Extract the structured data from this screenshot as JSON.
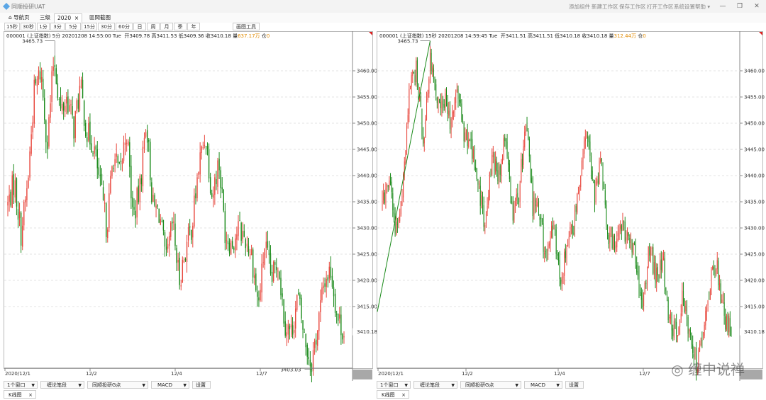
{
  "app": {
    "title": "同顺投研UAT"
  },
  "menu": {
    "add_component": "添加组件",
    "new_workspace": "新建工作区",
    "save_workspace": "保存工作区",
    "open_workspace": "打开工作区",
    "settings": "系统设置",
    "help": "帮助"
  },
  "tabs": [
    {
      "label": "导航页",
      "icon": "home-icon"
    },
    {
      "label": "三级"
    },
    {
      "label": "2020",
      "close": "×"
    },
    {
      "label": "區間截图"
    }
  ],
  "periods": [
    "15秒",
    "30秒",
    "1分",
    "3分",
    "5分",
    "15分",
    "30分",
    "60分",
    "日",
    "周",
    "月",
    "季",
    "年"
  ],
  "draw_tools": "画图工具",
  "left_panel": {
    "info": {
      "code": "000001",
      "name": "(上证指数)",
      "period": "5分",
      "datetime": "20201208 14:55:00 Tue",
      "open_label": "开",
      "open": "3409.78",
      "high_label": "高",
      "high": "3411.53",
      "low_label": "低",
      "low": "3409.36",
      "close_label": "收",
      "close": "3410.18",
      "vol_label": "量",
      "vol": "637.17万",
      "pos_label": "仓",
      "pos": "0"
    },
    "max_label": "3465.73",
    "min_label": "3403.03",
    "price_tag": "3410.18",
    "y_ticks": [
      "3460.00",
      "3455.00",
      "3450.00",
      "3445.00",
      "3440.00",
      "3435.00",
      "3430.00",
      "3425.00",
      "3420.00",
      "3415.00"
    ],
    "x_labels": [
      "2020/12/1",
      "12/2",
      "12/4",
      "12/7"
    ]
  },
  "right_panel": {
    "info": {
      "code": "000001",
      "name": "(上证指数)",
      "period": "15秒",
      "datetime": "20201208 14:59:45 Tue",
      "open_label": "开",
      "open": "3411.51",
      "high_label": "高",
      "high": "3411.51",
      "low_label": "低",
      "low": "3410.18",
      "close_label": "收",
      "close": "3410.18",
      "vol_label": "量",
      "vol": "312.44万",
      "pos_label": "仓",
      "pos": "0"
    },
    "max_label": "3465.73",
    "price_tag": "3410.18",
    "y_ticks": [
      "3460.00",
      "3455.00",
      "3450.00",
      "3445.00",
      "3440.00",
      "3435.00",
      "3430.00",
      "3425.00",
      "3420.00",
      "3415.00"
    ],
    "x_labels": [
      "2020/12/1",
      "12/2",
      "12/4",
      "12/7"
    ]
  },
  "bottom_controls": {
    "windows": "1个窗口",
    "indicator1": "缠论笔段",
    "indicator2": "同顺投研G点",
    "indicator3": "MACD",
    "settings": "设置"
  },
  "bottom_tab": {
    "label": "K线图",
    "close": "×"
  },
  "watermark": "缠中说禅",
  "colors": {
    "up": "#e8473d",
    "down": "#1a8a1a",
    "price_tag": "#1a8a1a",
    "vol": "#e08a00"
  },
  "chart_data": {
    "type": "candlestick",
    "price_range": [
      3403,
      3467
    ],
    "path": [
      3434.5,
      3439,
      3429,
      3438,
      3456,
      3460,
      3446,
      3463,
      3452,
      3455,
      3449,
      3457,
      3448,
      3446,
      3438,
      3430,
      3444,
      3440,
      3449,
      3432,
      3437,
      3451,
      3434,
      3433,
      3423,
      3431,
      3420,
      3426,
      3431,
      3442,
      3448,
      3436,
      3443,
      3429,
      3427,
      3430,
      3428,
      3425,
      3415,
      3427,
      3420,
      3424,
      3412,
      3410,
      3417,
      3409,
      3404,
      3411,
      3420,
      3422,
      3413,
      3410.18
    ]
  }
}
